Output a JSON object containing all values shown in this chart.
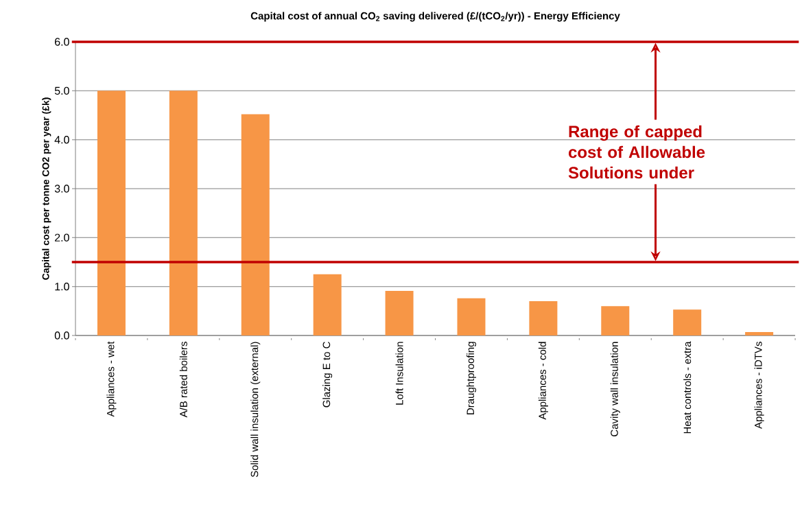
{
  "chart_data": {
    "type": "bar",
    "title": "Capital cost of annual CO$_{2}$ saving delivered (£/(tCO$_{2}$/yr)) - Energy Efficiency",
    "ylabel": "Capital cost per tonne CO2 per year (£k)",
    "categories": [
      "Appliances - wet",
      "A/B rated boilers",
      "Solid wall insulation (external)",
      "Glazing E to C",
      "Loft Insulation",
      "Draughtproofing",
      "Appliances - cold",
      "Cavity wall insulation",
      "Heat controls - extra",
      "Appliances - iDTVs"
    ],
    "values": [
      5.0,
      5.0,
      4.52,
      1.25,
      0.91,
      0.76,
      0.7,
      0.6,
      0.53,
      0.07
    ],
    "color": "#f79646",
    "ylim": [
      0,
      6
    ],
    "yticks": [
      {
        "value": 0,
        "label": "0.0"
      },
      {
        "value": 1,
        "label": "1.0"
      },
      {
        "value": 2,
        "label": "2.0"
      },
      {
        "value": 3,
        "label": "3.0"
      },
      {
        "value": 4,
        "label": "4.0"
      },
      {
        "value": 5,
        "label": "5.0"
      },
      {
        "value": 6,
        "label": "6.0"
      }
    ],
    "grid": "y",
    "ref_lines": [
      {
        "axis": "y",
        "value": 6.0,
        "color": "#c00000"
      },
      {
        "axis": "y",
        "value": 1.5,
        "color": "#c00000"
      }
    ],
    "annotations": [
      "Range of capped cost of Allowable Solutions under"
    ]
  }
}
